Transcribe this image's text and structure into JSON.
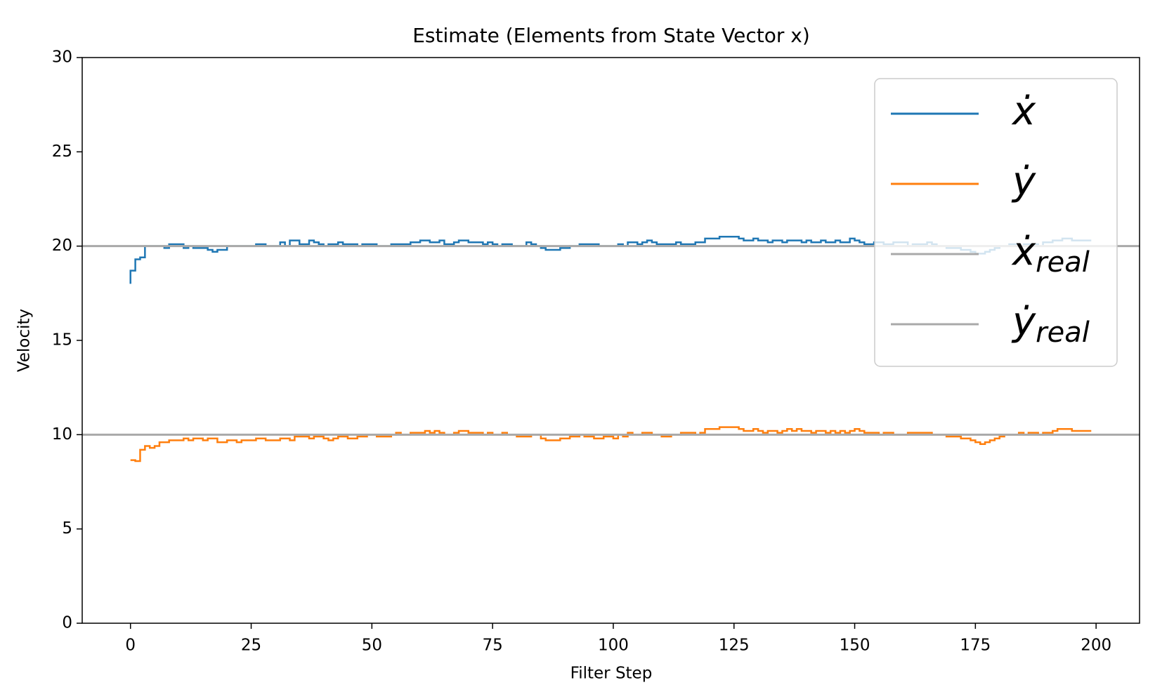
{
  "chart_data": {
    "type": "line",
    "step": "pre",
    "title": "Estimate (Elements from State Vector x)",
    "xlabel": "Filter Step",
    "ylabel": "Velocity",
    "xlim": [
      -10,
      209
    ],
    "xticks": [
      0,
      25,
      50,
      75,
      100,
      125,
      150,
      175,
      200
    ],
    "ylim": [
      0,
      30
    ],
    "yticks": [
      0,
      5,
      10,
      15,
      20,
      25,
      30
    ],
    "legend": "upper right",
    "x": [
      0,
      1,
      2,
      3,
      4,
      5,
      6,
      7,
      8,
      9,
      10,
      11,
      12,
      13,
      14,
      15,
      16,
      17,
      18,
      19,
      20,
      21,
      22,
      23,
      24,
      25,
      26,
      27,
      28,
      29,
      30,
      31,
      32,
      33,
      34,
      35,
      36,
      37,
      38,
      39,
      40,
      41,
      42,
      43,
      44,
      45,
      46,
      47,
      48,
      49,
      50,
      51,
      52,
      53,
      54,
      55,
      56,
      57,
      58,
      59,
      60,
      61,
      62,
      63,
      64,
      65,
      66,
      67,
      68,
      69,
      70,
      71,
      72,
      73,
      74,
      75,
      76,
      77,
      78,
      79,
      80,
      81,
      82,
      83,
      84,
      85,
      86,
      87,
      88,
      89,
      90,
      91,
      92,
      93,
      94,
      95,
      96,
      97,
      98,
      99,
      100,
      101,
      102,
      103,
      104,
      105,
      106,
      107,
      108,
      109,
      110,
      111,
      112,
      113,
      114,
      115,
      116,
      117,
      118,
      119,
      120,
      121,
      122,
      123,
      124,
      125,
      126,
      127,
      128,
      129,
      130,
      131,
      132,
      133,
      134,
      135,
      136,
      137,
      138,
      139,
      140,
      141,
      142,
      143,
      144,
      145,
      146,
      147,
      148,
      149,
      150,
      151,
      152,
      153,
      154,
      155,
      156,
      157,
      158,
      159,
      160,
      161,
      162,
      163,
      164,
      165,
      166,
      167,
      168,
      169,
      170,
      171,
      172,
      173,
      174,
      175,
      176,
      177,
      178,
      179,
      180,
      181,
      182,
      183,
      184,
      185,
      186,
      187,
      188,
      189,
      190,
      191,
      192,
      193,
      194,
      195,
      196,
      197,
      198,
      199
    ],
    "series": [
      {
        "name": "ẋ",
        "color": "#1f77b4",
        "values": [
          18.0,
          18.7,
          19.3,
          19.4,
          20.0,
          20.0,
          20.0,
          20.0,
          19.9,
          20.1,
          20.1,
          20.1,
          19.9,
          20.0,
          19.9,
          19.9,
          19.9,
          19.8,
          19.7,
          19.8,
          19.8,
          20.0,
          20.0,
          20.0,
          20.0,
          20.0,
          20.0,
          20.1,
          20.1,
          20.0,
          20.0,
          20.0,
          20.2,
          20.0,
          20.3,
          20.3,
          20.1,
          20.1,
          20.3,
          20.2,
          20.1,
          20.0,
          20.1,
          20.1,
          20.2,
          20.1,
          20.1,
          20.1,
          20.0,
          20.1,
          20.1,
          20.1,
          20.0,
          20.0,
          20.0,
          20.1,
          20.1,
          20.1,
          20.1,
          20.2,
          20.2,
          20.3,
          20.3,
          20.2,
          20.2,
          20.3,
          20.1,
          20.1,
          20.2,
          20.3,
          20.3,
          20.2,
          20.2,
          20.2,
          20.1,
          20.2,
          20.1,
          20.0,
          20.1,
          20.1,
          20.0,
          20.0,
          20.0,
          20.2,
          20.1,
          20.0,
          19.9,
          19.8,
          19.8,
          19.8,
          19.9,
          19.9,
          20.0,
          20.0,
          20.1,
          20.1,
          20.1,
          20.1,
          20.0,
          20.0,
          20.0,
          20.0,
          20.1,
          20.0,
          20.2,
          20.2,
          20.1,
          20.2,
          20.3,
          20.2,
          20.1,
          20.1,
          20.1,
          20.1,
          20.2,
          20.1,
          20.1,
          20.1,
          20.2,
          20.2,
          20.4,
          20.4,
          20.4,
          20.5,
          20.5,
          20.5,
          20.5,
          20.4,
          20.3,
          20.3,
          20.4,
          20.3,
          20.3,
          20.2,
          20.3,
          20.3,
          20.2,
          20.3,
          20.3,
          20.3,
          20.2,
          20.3,
          20.2,
          20.2,
          20.3,
          20.2,
          20.2,
          20.3,
          20.2,
          20.2,
          20.4,
          20.3,
          20.2,
          20.1,
          20.1,
          20.2,
          20.2,
          20.1,
          20.1,
          20.2,
          20.2,
          20.2,
          20.0,
          20.1,
          20.1,
          20.1,
          20.2,
          20.1,
          20.0,
          20.0,
          19.9,
          19.9,
          19.9,
          19.8,
          19.8,
          19.7,
          19.6,
          19.6,
          19.7,
          19.8,
          19.9,
          20.0,
          20.0,
          20.1,
          20.1,
          20.0,
          20.1,
          20.1,
          20.1,
          20.0,
          20.2,
          20.2,
          20.3,
          20.3,
          20.4,
          20.4,
          20.3,
          20.3,
          20.3,
          20.3
        ]
      },
      {
        "name": "ẏ",
        "color": "#ff7f0e",
        "values": [
          8.65,
          8.65,
          8.6,
          9.2,
          9.4,
          9.3,
          9.4,
          9.6,
          9.6,
          9.7,
          9.7,
          9.7,
          9.8,
          9.7,
          9.8,
          9.8,
          9.7,
          9.8,
          9.8,
          9.6,
          9.6,
          9.7,
          9.7,
          9.6,
          9.7,
          9.7,
          9.7,
          9.8,
          9.8,
          9.7,
          9.7,
          9.7,
          9.8,
          9.8,
          9.7,
          9.9,
          9.9,
          9.9,
          9.8,
          9.9,
          9.9,
          9.8,
          9.7,
          9.8,
          9.9,
          9.9,
          9.8,
          9.8,
          9.9,
          9.9,
          10.0,
          10.0,
          9.9,
          9.9,
          9.9,
          10.0,
          10.1,
          10.0,
          10.0,
          10.1,
          10.1,
          10.1,
          10.2,
          10.1,
          10.2,
          10.1,
          10.0,
          10.0,
          10.1,
          10.2,
          10.2,
          10.1,
          10.1,
          10.1,
          10.0,
          10.1,
          10.0,
          10.0,
          10.1,
          10.0,
          10.0,
          9.9,
          9.9,
          9.9,
          10.0,
          10.0,
          9.8,
          9.7,
          9.7,
          9.7,
          9.8,
          9.8,
          9.9,
          9.9,
          10.0,
          9.9,
          9.9,
          9.8,
          9.8,
          9.9,
          9.9,
          9.8,
          10.0,
          9.9,
          10.1,
          10.0,
          10.0,
          10.1,
          10.1,
          10.0,
          10.0,
          9.9,
          9.9,
          10.0,
          10.0,
          10.1,
          10.1,
          10.1,
          10.0,
          10.1,
          10.3,
          10.3,
          10.3,
          10.4,
          10.4,
          10.4,
          10.4,
          10.3,
          10.2,
          10.2,
          10.3,
          10.2,
          10.1,
          10.2,
          10.2,
          10.1,
          10.2,
          10.3,
          10.2,
          10.3,
          10.2,
          10.2,
          10.1,
          10.2,
          10.2,
          10.1,
          10.2,
          10.1,
          10.2,
          10.1,
          10.2,
          10.3,
          10.2,
          10.1,
          10.1,
          10.1,
          10.0,
          10.1,
          10.1,
          10.0,
          10.0,
          10.0,
          10.1,
          10.1,
          10.1,
          10.1,
          10.1,
          10.0,
          10.0,
          10.0,
          9.9,
          9.9,
          9.9,
          9.8,
          9.8,
          9.7,
          9.6,
          9.5,
          9.6,
          9.7,
          9.8,
          9.9,
          10.0,
          10.0,
          10.0,
          10.1,
          10.0,
          10.1,
          10.1,
          10.0,
          10.1,
          10.1,
          10.2,
          10.3,
          10.3,
          10.3,
          10.2,
          10.2,
          10.2,
          10.2
        ]
      }
    ],
    "hlines": [
      {
        "name": "ẋ",
        "sub": "real",
        "color": "#a9a9a9",
        "value": 20
      },
      {
        "name": "ẏ",
        "sub": "real",
        "color": "#a9a9a9",
        "value": 10
      }
    ]
  }
}
